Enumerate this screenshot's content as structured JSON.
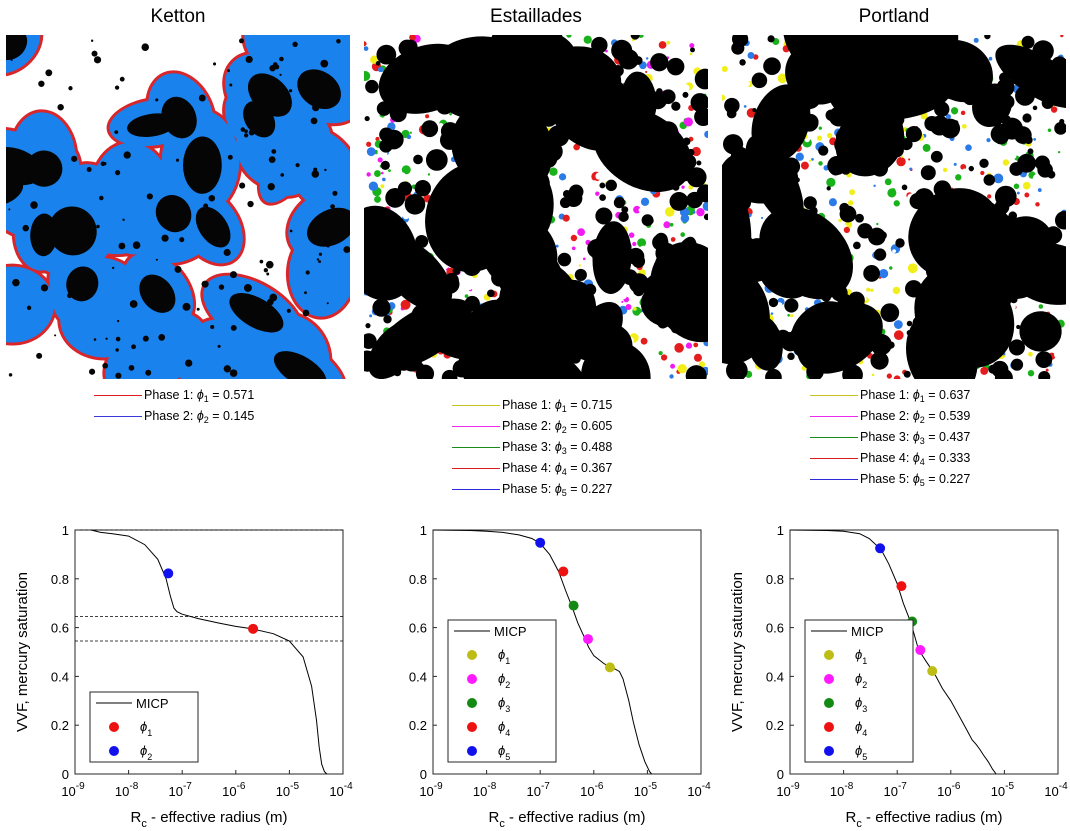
{
  "figure": {
    "panels": [
      {
        "id": "ketton",
        "title": "Ketton",
        "image_base": "#1a82ed",
        "phases": [
          {
            "label": "Phase 1: ",
            "sym": "ϕ",
            "sub": "1",
            "value": " = 0.571",
            "color": "#e0191c"
          },
          {
            "label": "Phase 2: ",
            "sym": "ϕ",
            "sub": "2",
            "value": " = 0.145",
            "color": "#3a3adc"
          }
        ]
      },
      {
        "id": "estaillades",
        "title": "Estaillades",
        "image_base": "#000000",
        "phases": [
          {
            "label": "Phase 1: ",
            "sym": "ϕ",
            "sub": "1",
            "value": " = 0.715",
            "color": "#c8c21e"
          },
          {
            "label": "Phase 2: ",
            "sym": "ϕ",
            "sub": "2",
            "value": " = 0.605",
            "color": "#ee2aee"
          },
          {
            "label": "Phase 3: ",
            "sym": "ϕ",
            "sub": "3",
            "value": " = 0.488",
            "color": "#1a8a1a"
          },
          {
            "label": "Phase 4: ",
            "sym": "ϕ",
            "sub": "4",
            "value": " = 0.367",
            "color": "#d81c1c"
          },
          {
            "label": "Phase 5: ",
            "sym": "ϕ",
            "sub": "5",
            "value": " = 0.227",
            "color": "#2a2ad8"
          }
        ]
      },
      {
        "id": "portland",
        "title": "Portland",
        "image_base": "#000000",
        "phases": [
          {
            "label": "Phase 1: ",
            "sym": "ϕ",
            "sub": "1",
            "value": " = 0.637",
            "color": "#c8c21e"
          },
          {
            "label": "Phase 2: ",
            "sym": "ϕ",
            "sub": "2",
            "value": " = 0.539",
            "color": "#ee2aee"
          },
          {
            "label": "Phase 3: ",
            "sym": "ϕ",
            "sub": "3",
            "value": " = 0.437",
            "color": "#1a8a1a"
          },
          {
            "label": "Phase 4: ",
            "sym": "ϕ",
            "sub": "4",
            "value": " = 0.333",
            "color": "#d81c1c"
          },
          {
            "label": "Phase 5: ",
            "sym": "ϕ",
            "sub": "5",
            "value": " = 0.227",
            "color": "#2a2ad8"
          }
        ]
      }
    ]
  },
  "chart_data": [
    {
      "type": "line",
      "panel": "Ketton",
      "xlabel": "R_c - effective radius (m)",
      "ylabel": "VVF, mercury saturation",
      "xscale": "log",
      "xlim": [
        1e-09,
        0.0001
      ],
      "ylim": [
        0,
        1
      ],
      "xticks": [
        "10^-9",
        "10^-8",
        "10^-7",
        "10^-6",
        "10^-5",
        "10^-4"
      ],
      "yticks": [
        "0",
        "0.2",
        "0.4",
        "0.6",
        "0.8",
        "1"
      ],
      "hlines": [
        1.0,
        0.645,
        0.545
      ],
      "legend": {
        "position": "bottom-left",
        "entries": [
          {
            "label": "MICP",
            "kind": "line",
            "color": "#000000"
          },
          {
            "label": "ϕ",
            "sub": "1",
            "kind": "dot",
            "color": "#ee1111"
          },
          {
            "label": "ϕ",
            "sub": "2",
            "kind": "dot",
            "color": "#1111ee"
          }
        ]
      },
      "series": [
        {
          "name": "MICP",
          "x": [
            2e-09,
            3e-09,
            5e-09,
            1e-08,
            2e-08,
            3.5e-08,
            5e-08,
            6e-08,
            7e-08,
            8e-08,
            1e-07,
            2e-07,
            5e-07,
            1e-06,
            2e-06,
            5e-06,
            1e-05,
            1.8e-05,
            2.6e-05,
            3.2e-05,
            3.6e-05,
            4e-05,
            4.5e-05,
            5e-05
          ],
          "y": [
            1.0,
            0.99,
            0.985,
            0.975,
            0.94,
            0.88,
            0.8,
            0.73,
            0.68,
            0.665,
            0.655,
            0.637,
            0.618,
            0.605,
            0.595,
            0.575,
            0.545,
            0.48,
            0.36,
            0.22,
            0.11,
            0.04,
            0.01,
            0.0
          ]
        }
      ],
      "points": [
        {
          "label": "ϕ1",
          "x": 2.1e-06,
          "y": 0.595,
          "color": "#ee1111"
        },
        {
          "label": "ϕ2",
          "x": 5.5e-08,
          "y": 0.822,
          "color": "#1111ee"
        }
      ]
    },
    {
      "type": "line",
      "panel": "Estaillades",
      "xlabel": "R_c - effective radius (m)",
      "ylabel": "",
      "xscale": "log",
      "xlim": [
        1e-09,
        0.0001
      ],
      "ylim": [
        0,
        1
      ],
      "xticks": [
        "10^-9",
        "10^-8",
        "10^-7",
        "10^-6",
        "10^-5",
        "10^-4"
      ],
      "yticks": [
        "0",
        "0.2",
        "0.4",
        "0.6",
        "0.8",
        "1"
      ],
      "hlines": [],
      "legend": {
        "position": "bottom-left",
        "entries": [
          {
            "label": "MICP",
            "kind": "line",
            "color": "#000000"
          },
          {
            "label": "ϕ",
            "sub": "1",
            "kind": "dot",
            "color": "#bdbd16"
          },
          {
            "label": "ϕ",
            "sub": "2",
            "kind": "dot",
            "color": "#ff1aff"
          },
          {
            "label": "ϕ",
            "sub": "3",
            "kind": "dot",
            "color": "#138a13"
          },
          {
            "label": "ϕ",
            "sub": "4",
            "kind": "dot",
            "color": "#ee1111"
          },
          {
            "label": "ϕ",
            "sub": "5",
            "kind": "dot",
            "color": "#1111ee"
          }
        ]
      },
      "series": [
        {
          "name": "MICP",
          "x": [
            1e-09,
            5e-09,
            1e-08,
            2e-08,
            4e-08,
            7e-08,
            1e-07,
            1.5e-07,
            2.2e-07,
            3e-07,
            4e-07,
            5e-07,
            6.5e-07,
            8e-07,
            1e-06,
            1.5e-06,
            2e-06,
            2.5e-06,
            3e-06,
            3.5e-06,
            4.5e-06,
            5.5e-06,
            7e-06,
            9e-06,
            1.1e-05,
            1.2e-05
          ],
          "y": [
            1.0,
            0.998,
            0.995,
            0.99,
            0.98,
            0.965,
            0.945,
            0.9,
            0.83,
            0.75,
            0.68,
            0.62,
            0.565,
            0.52,
            0.485,
            0.455,
            0.437,
            0.43,
            0.42,
            0.39,
            0.3,
            0.21,
            0.12,
            0.05,
            0.01,
            0.0
          ]
        }
      ],
      "points": [
        {
          "label": "ϕ1",
          "x": 2e-06,
          "y": 0.437,
          "color": "#bdbd16"
        },
        {
          "label": "ϕ2",
          "x": 7.8e-07,
          "y": 0.553,
          "color": "#ff1aff"
        },
        {
          "label": "ϕ3",
          "x": 4.2e-07,
          "y": 0.69,
          "color": "#138a13"
        },
        {
          "label": "ϕ4",
          "x": 2.7e-07,
          "y": 0.83,
          "color": "#ee1111"
        },
        {
          "label": "ϕ5",
          "x": 1e-07,
          "y": 0.948,
          "color": "#1111ee"
        }
      ]
    },
    {
      "type": "line",
      "panel": "Portland",
      "xlabel": "R_c - effective radius (m)",
      "ylabel": "VVF, mercury saturation",
      "xscale": "log",
      "xlim": [
        1e-09,
        0.0001
      ],
      "ylim": [
        0,
        1
      ],
      "xticks": [
        "10^-9",
        "10^-8",
        "10^-7",
        "10^-6",
        "10^-5",
        "10^-4"
      ],
      "yticks": [
        "0",
        "0.2",
        "0.4",
        "0.6",
        "0.8",
        "1"
      ],
      "hlines": [],
      "legend": {
        "position": "bottom-left",
        "entries": [
          {
            "label": "MICP",
            "kind": "line",
            "color": "#000000"
          },
          {
            "label": "ϕ",
            "sub": "1",
            "kind": "dot",
            "color": "#bdbd16"
          },
          {
            "label": "ϕ",
            "sub": "2",
            "kind": "dot",
            "color": "#ff1aff"
          },
          {
            "label": "ϕ",
            "sub": "3",
            "kind": "dot",
            "color": "#138a13"
          },
          {
            "label": "ϕ",
            "sub": "4",
            "kind": "dot",
            "color": "#ee1111"
          },
          {
            "label": "ϕ",
            "sub": "5",
            "kind": "dot",
            "color": "#1111ee"
          }
        ]
      },
      "series": [
        {
          "name": "MICP",
          "x": [
            1e-09,
            5e-09,
            1e-08,
            2e-08,
            3e-08,
            5e-08,
            7e-08,
            1e-07,
            1.3e-07,
            1.8e-07,
            2.5e-07,
            3.5e-07,
            5e-07,
            7e-07,
            1e-06,
            1.5e-06,
            2e-06,
            2.5e-06,
            3e-06,
            3.5e-06,
            4e-06,
            5e-06,
            6e-06,
            7e-06
          ],
          "y": [
            1.0,
            0.998,
            0.995,
            0.985,
            0.965,
            0.92,
            0.86,
            0.78,
            0.7,
            0.62,
            0.51,
            0.46,
            0.41,
            0.35,
            0.3,
            0.23,
            0.18,
            0.14,
            0.12,
            0.1,
            0.08,
            0.05,
            0.02,
            0.0
          ]
        }
      ],
      "points": [
        {
          "label": "ϕ1",
          "x": 4.5e-07,
          "y": 0.422,
          "color": "#bdbd16"
        },
        {
          "label": "ϕ2",
          "x": 2.7e-07,
          "y": 0.508,
          "color": "#ff1aff"
        },
        {
          "label": "ϕ3",
          "x": 1.9e-07,
          "y": 0.625,
          "color": "#138a13"
        },
        {
          "label": "ϕ4",
          "x": 1.2e-07,
          "y": 0.77,
          "color": "#ee1111"
        },
        {
          "label": "ϕ5",
          "x": 4.8e-08,
          "y": 0.925,
          "color": "#1111ee"
        }
      ]
    }
  ]
}
